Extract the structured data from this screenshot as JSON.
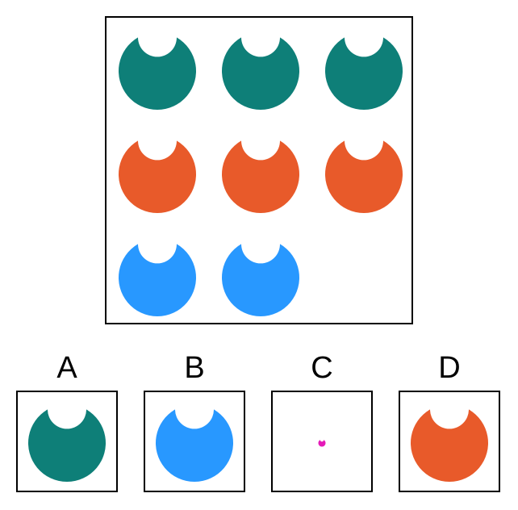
{
  "colors": {
    "teal": "#0e7f78",
    "orange": "#e85a2a",
    "blue": "#2898ff",
    "magenta": "#e51ab8"
  },
  "grid": {
    "cells": [
      {
        "row": 1,
        "col": 1,
        "color": "teal"
      },
      {
        "row": 1,
        "col": 2,
        "color": "teal"
      },
      {
        "row": 1,
        "col": 3,
        "color": "teal"
      },
      {
        "row": 2,
        "col": 1,
        "color": "orange"
      },
      {
        "row": 2,
        "col": 2,
        "color": "orange"
      },
      {
        "row": 2,
        "col": 3,
        "color": "orange"
      },
      {
        "row": 3,
        "col": 1,
        "color": "blue"
      },
      {
        "row": 3,
        "col": 2,
        "color": "blue"
      },
      {
        "row": 3,
        "col": 3,
        "color": null
      }
    ]
  },
  "options": [
    {
      "label": "A",
      "color": "teal",
      "size": "large"
    },
    {
      "label": "B",
      "color": "blue",
      "size": "large"
    },
    {
      "label": "C",
      "color": "magenta",
      "size": "tiny"
    },
    {
      "label": "D",
      "color": "orange",
      "size": "large"
    }
  ]
}
